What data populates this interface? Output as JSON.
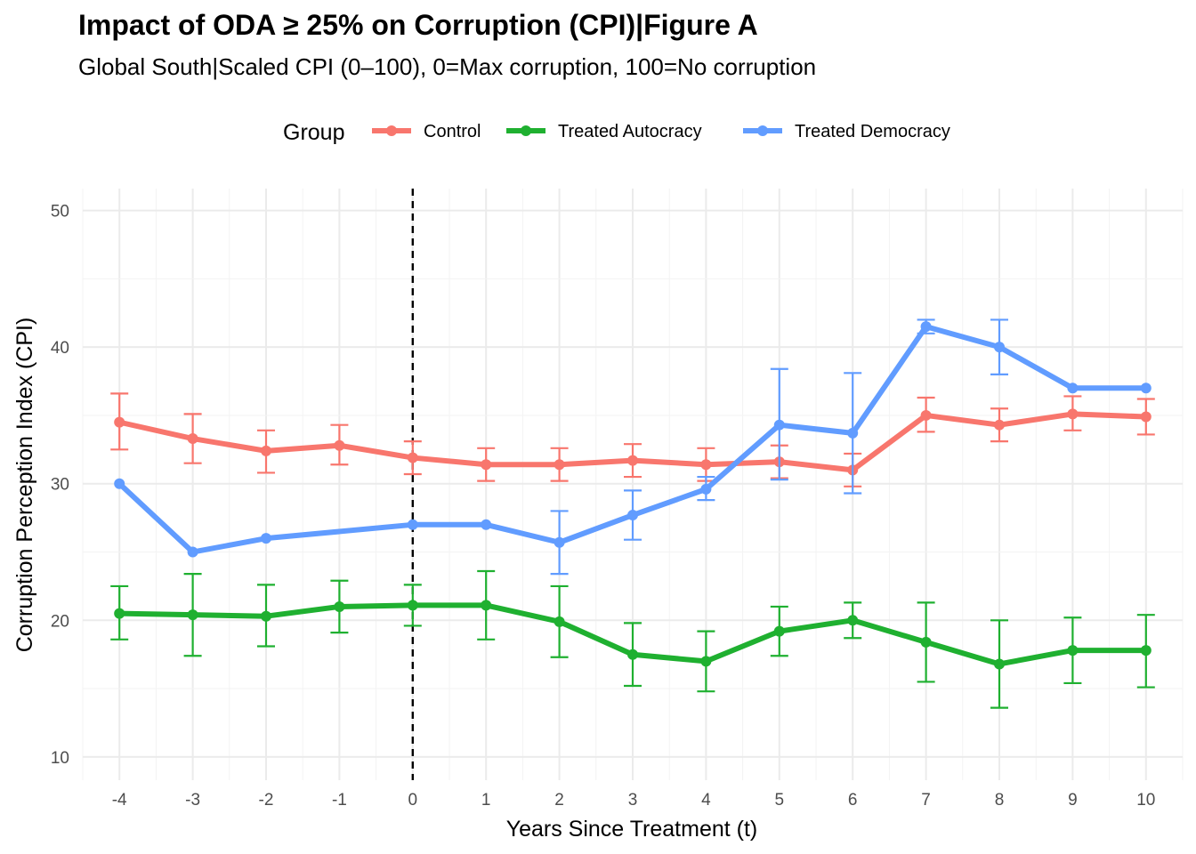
{
  "chart_data": {
    "type": "line",
    "title": "Impact of ODA ≥ 25% on Corruption (CPI)|Figure A",
    "subtitle": "Global South|Scaled CPI (0–100), 0=Max corruption, 100=No corruption",
    "xlabel": "Years Since Treatment (t)",
    "ylabel": "Corruption Perception Index (CPI)",
    "x_ticks": [
      -4,
      -3,
      -2,
      -1,
      0,
      1,
      2,
      3,
      4,
      5,
      6,
      7,
      8,
      9,
      10
    ],
    "y_ticks": [
      10,
      20,
      30,
      40,
      50
    ],
    "xlim": [
      -4.5,
      10.5
    ],
    "ylim": [
      8.3,
      51.6
    ],
    "grid": true,
    "vline": {
      "x": 0,
      "style": "dashed"
    },
    "legend": {
      "title": "Group",
      "position": "top"
    },
    "series": [
      {
        "name": "Control",
        "color": "#F8766D",
        "x": [
          -4,
          -3,
          -2,
          -1,
          0,
          1,
          2,
          3,
          4,
          5,
          6,
          7,
          8,
          9,
          10
        ],
        "y": [
          34.5,
          33.3,
          32.4,
          32.8,
          31.9,
          31.4,
          31.4,
          31.7,
          31.4,
          31.6,
          31.0,
          35.0,
          34.3,
          35.1,
          34.9
        ],
        "lower": [
          32.5,
          31.5,
          30.8,
          31.4,
          30.7,
          30.2,
          30.2,
          30.5,
          30.2,
          30.4,
          29.8,
          33.8,
          33.1,
          33.9,
          33.6
        ],
        "upper": [
          36.6,
          35.1,
          33.9,
          34.3,
          33.1,
          32.6,
          32.6,
          32.9,
          32.6,
          32.8,
          32.2,
          36.3,
          35.5,
          36.4,
          36.2
        ]
      },
      {
        "name": "Treated Autocracy",
        "color": "#1FB030",
        "x": [
          -4,
          -3,
          -2,
          -1,
          0,
          1,
          2,
          3,
          4,
          5,
          6,
          7,
          8,
          9,
          10
        ],
        "y": [
          20.5,
          20.4,
          20.3,
          21.0,
          21.1,
          21.1,
          19.9,
          17.5,
          17.0,
          19.2,
          20.0,
          18.4,
          16.8,
          17.8,
          17.8
        ],
        "lower": [
          18.6,
          17.4,
          18.1,
          19.1,
          19.6,
          18.6,
          17.3,
          15.2,
          14.8,
          17.4,
          18.7,
          15.5,
          13.6,
          15.4,
          15.1
        ],
        "upper": [
          22.5,
          23.4,
          22.6,
          22.9,
          22.6,
          23.6,
          22.5,
          19.8,
          19.2,
          21.0,
          21.3,
          21.3,
          20.0,
          20.2,
          20.4
        ]
      },
      {
        "name": "Treated Democracy",
        "color": "#619CFF",
        "x": [
          -4,
          -3,
          -2,
          0,
          1,
          2,
          3,
          4,
          5,
          6,
          7,
          8,
          9,
          10
        ],
        "y": [
          30.0,
          25.0,
          26.0,
          27.0,
          27.0,
          25.7,
          27.7,
          29.6,
          34.3,
          33.7,
          41.5,
          40.0,
          37.0,
          37.0
        ],
        "lower": [
          null,
          null,
          null,
          null,
          null,
          23.4,
          25.9,
          28.8,
          30.3,
          29.3,
          41.0,
          38.0,
          null,
          null
        ],
        "upper": [
          null,
          null,
          null,
          null,
          null,
          28.0,
          29.5,
          30.5,
          38.4,
          38.1,
          42.0,
          42.0,
          null,
          null
        ]
      }
    ]
  }
}
